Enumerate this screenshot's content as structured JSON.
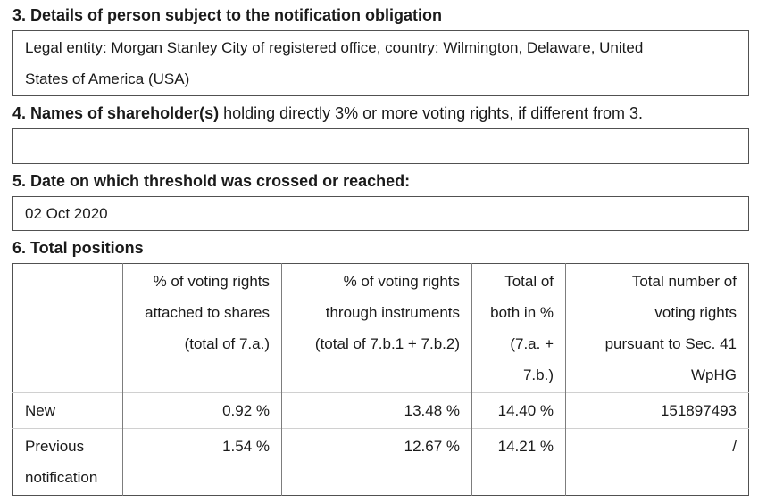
{
  "document": {
    "section3": {
      "title": "3. Details of person subject to the notification obligation",
      "box_lines": [
        "Legal entity: Morgan Stanley City of registered office, country: Wilmington, Delaware, United",
        "States of America (USA)"
      ]
    },
    "section4": {
      "title_bold": "4. Names of shareholder(s)",
      "title_rest": " holding directly 3% or more voting rights, if different from 3.",
      "box_value": ""
    },
    "section5": {
      "title": "5. Date on which threshold was crossed or reached:",
      "box_value": "02 Oct 2020"
    },
    "section6": {
      "title": "6. Total positions",
      "table": {
        "headers": [
          {
            "lines": []
          },
          {
            "lines": [
              "% of voting rights",
              "attached to shares",
              "(total of 7.a.)"
            ]
          },
          {
            "lines": [
              "% of voting rights",
              "through instruments",
              "(total of 7.b.1 + 7.b.2)"
            ]
          },
          {
            "lines": [
              "Total of",
              "both in %",
              "(7.a. +",
              "7.b.)"
            ]
          },
          {
            "lines": [
              "Total number of",
              "voting rights",
              "pursuant to Sec. 41",
              "WpHG"
            ]
          }
        ],
        "rows": [
          {
            "label": "New",
            "cells": [
              "0.92 %",
              "13.48 %",
              "14.40 %",
              "151897493"
            ]
          },
          {
            "label": "Previous notification",
            "cells": [
              "1.54 %",
              "12.67 %",
              "14.21 %",
              "/"
            ]
          }
        ]
      }
    }
  },
  "colors": {
    "background": "#ffffff",
    "text": "#1a1a1a",
    "box_border": "#515151",
    "table_outer_border": "#515151",
    "table_inner_vertical_border": "#7d7d7d",
    "table_inner_horizontal_border": "#d0d0d0"
  }
}
